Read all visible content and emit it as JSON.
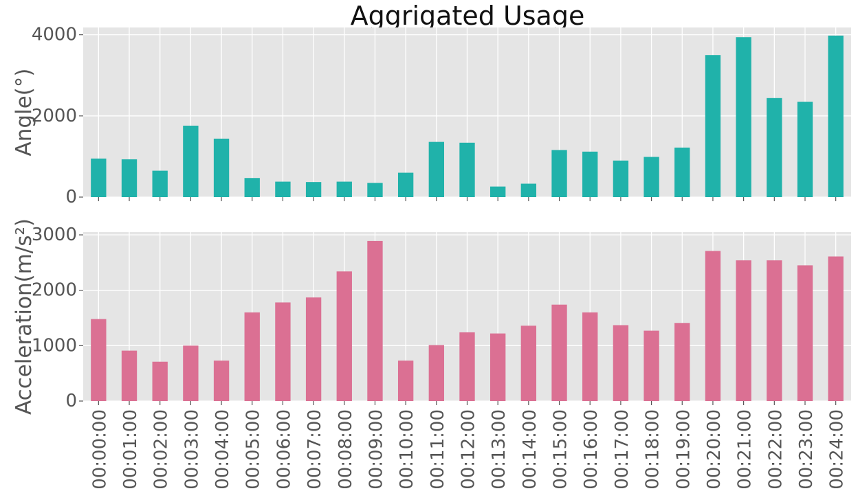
{
  "chart_data": {
    "type": "bar",
    "title": "Aggrigated Usage",
    "categories": [
      "00:00:00",
      "00:01:00",
      "00:02:00",
      "00:03:00",
      "00:04:00",
      "00:05:00",
      "00:06:00",
      "00:07:00",
      "00:08:00",
      "00:09:00",
      "00:10:00",
      "00:11:00",
      "00:12:00",
      "00:13:00",
      "00:14:00",
      "00:15:00",
      "00:16:00",
      "00:17:00",
      "00:18:00",
      "00:19:00",
      "00:20:00",
      "00:21:00",
      "00:22:00",
      "00:23:00",
      "00:24:00"
    ],
    "panels": [
      {
        "ylabel": "Angle(°)",
        "color": "#20b2aa",
        "ylim": [
          0,
          4180
        ],
        "yticks": [
          0,
          2000,
          4000
        ],
        "values": [
          950,
          930,
          650,
          1760,
          1440,
          470,
          380,
          370,
          380,
          350,
          600,
          1360,
          1340,
          260,
          330,
          1160,
          1120,
          900,
          990,
          1220,
          3500,
          3940,
          2440,
          2350,
          3980
        ]
      },
      {
        "ylabel": "Acceleration(m/s²)",
        "color": "#db7093",
        "ylim": [
          0,
          3050
        ],
        "yticks": [
          0,
          1000,
          2000,
          3000
        ],
        "values": [
          1480,
          910,
          710,
          1000,
          730,
          1600,
          1780,
          1870,
          2340,
          2890,
          730,
          1010,
          1240,
          1220,
          1360,
          1740,
          1600,
          1370,
          1270,
          1410,
          2710,
          2540,
          2540,
          2450,
          2610
        ]
      }
    ],
    "grid": true,
    "background": "#e5e5e5"
  }
}
